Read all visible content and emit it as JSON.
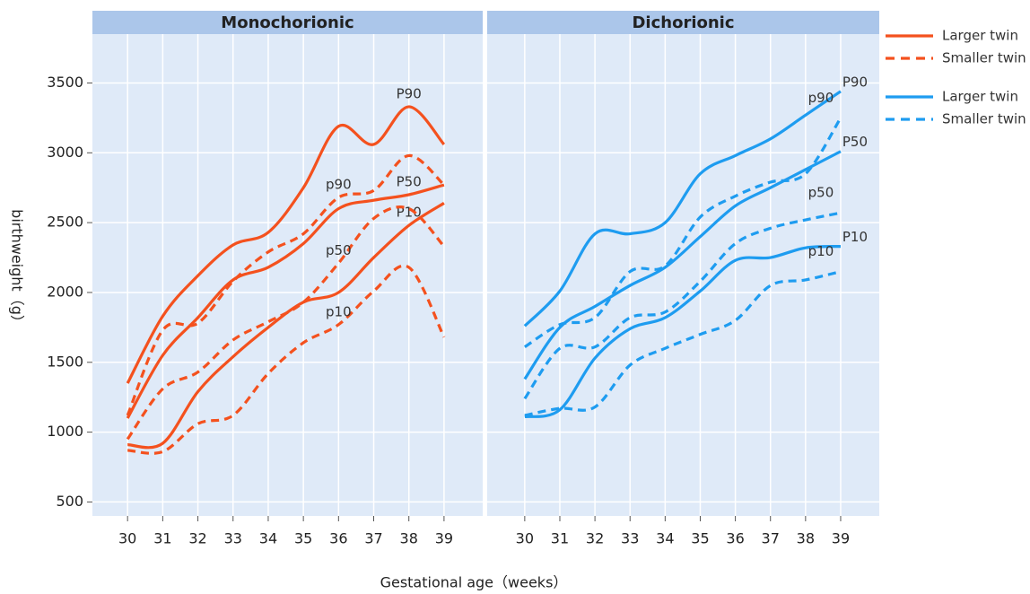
{
  "chart_data": [
    {
      "type": "line",
      "title": "Monochorionic",
      "x": [
        30,
        31,
        32,
        33,
        34,
        35,
        36,
        37,
        38,
        39
      ],
      "xlim": [
        29,
        40.1
      ],
      "xticks": [
        30,
        31,
        32,
        33,
        34,
        35,
        36,
        37,
        38,
        39
      ],
      "ylim": [
        400,
        3850
      ],
      "yticks": [
        500,
        1000,
        1500,
        2000,
        2500,
        3000,
        3500
      ],
      "grid": true,
      "legend": [
        {
          "name": "Larger twin",
          "color": "#f4511e",
          "style": "solid"
        },
        {
          "name": "Smaller twin",
          "color": "#f4511e",
          "style": "dashed"
        }
      ],
      "series": [
        {
          "label": "P90",
          "color": "#f4511e",
          "style": "solid",
          "values": [
            1350,
            1830,
            2120,
            2340,
            2430,
            2750,
            3190,
            3060,
            3330,
            3060
          ]
        },
        {
          "label": "P50",
          "color": "#f4511e",
          "style": "solid",
          "values": [
            1100,
            1550,
            1820,
            2090,
            2180,
            2350,
            2600,
            2660,
            2700,
            2770
          ]
        },
        {
          "label": "P10",
          "color": "#f4511e",
          "style": "solid",
          "values": [
            910,
            920,
            1290,
            1540,
            1750,
            1930,
            2000,
            2250,
            2480,
            2640
          ]
        },
        {
          "label": "p90",
          "color": "#f4511e",
          "style": "dashed",
          "values": [
            1120,
            1730,
            1780,
            2080,
            2290,
            2420,
            2680,
            2730,
            2980,
            2770
          ]
        },
        {
          "label": "p50",
          "color": "#f4511e",
          "style": "dashed",
          "values": [
            950,
            1310,
            1430,
            1660,
            1790,
            1930,
            2210,
            2530,
            2600,
            2330
          ]
        },
        {
          "label": "p10",
          "color": "#f4511e",
          "style": "dashed",
          "values": [
            870,
            860,
            1060,
            1120,
            1420,
            1640,
            1770,
            2010,
            2180,
            1680
          ]
        }
      ]
    },
    {
      "type": "line",
      "title": "Dichorionic",
      "x": [
        30,
        31,
        32,
        33,
        34,
        35,
        36,
        37,
        38,
        39
      ],
      "xlim": [
        28.93,
        40.1
      ],
      "xticks": [
        30,
        31,
        32,
        33,
        34,
        35,
        36,
        37,
        38,
        39
      ],
      "ylim": [
        400,
        3850
      ],
      "yticks": [
        500,
        1000,
        1500,
        2000,
        2500,
        3000,
        3500
      ],
      "grid": true,
      "legend": [
        {
          "name": "Larger twin",
          "color": "#1e9cf0",
          "style": "solid"
        },
        {
          "name": "Smaller twin",
          "color": "#1e9cf0",
          "style": "dashed"
        }
      ],
      "series": [
        {
          "label": "P90",
          "color": "#1e9cf0",
          "style": "solid",
          "values": [
            1760,
            2010,
            2420,
            2420,
            2500,
            2850,
            2980,
            3100,
            3270,
            3440
          ]
        },
        {
          "label": "P50",
          "color": "#1e9cf0",
          "style": "solid",
          "values": [
            1380,
            1750,
            1900,
            2050,
            2180,
            2400,
            2620,
            2750,
            2880,
            3010
          ]
        },
        {
          "label": "P10",
          "color": "#1e9cf0",
          "style": "solid",
          "values": [
            1110,
            1160,
            1530,
            1740,
            1820,
            2010,
            2230,
            2250,
            2320,
            2330
          ]
        },
        {
          "label": "p90",
          "color": "#1e9cf0",
          "style": "dashed",
          "values": [
            1610,
            1770,
            1820,
            2150,
            2190,
            2540,
            2690,
            2790,
            2850,
            3250
          ]
        },
        {
          "label": "p50",
          "color": "#1e9cf0",
          "style": "dashed",
          "values": [
            1240,
            1600,
            1610,
            1820,
            1860,
            2080,
            2350,
            2460,
            2520,
            2570
          ]
        },
        {
          "label": "p10",
          "color": "#1e9cf0",
          "style": "dashed",
          "values": [
            1120,
            1170,
            1180,
            1480,
            1600,
            1700,
            1800,
            2050,
            2090,
            2150
          ]
        }
      ]
    }
  ],
  "xlabel": "Gestational age（weeks）",
  "ylabel": "birthweight（g）"
}
